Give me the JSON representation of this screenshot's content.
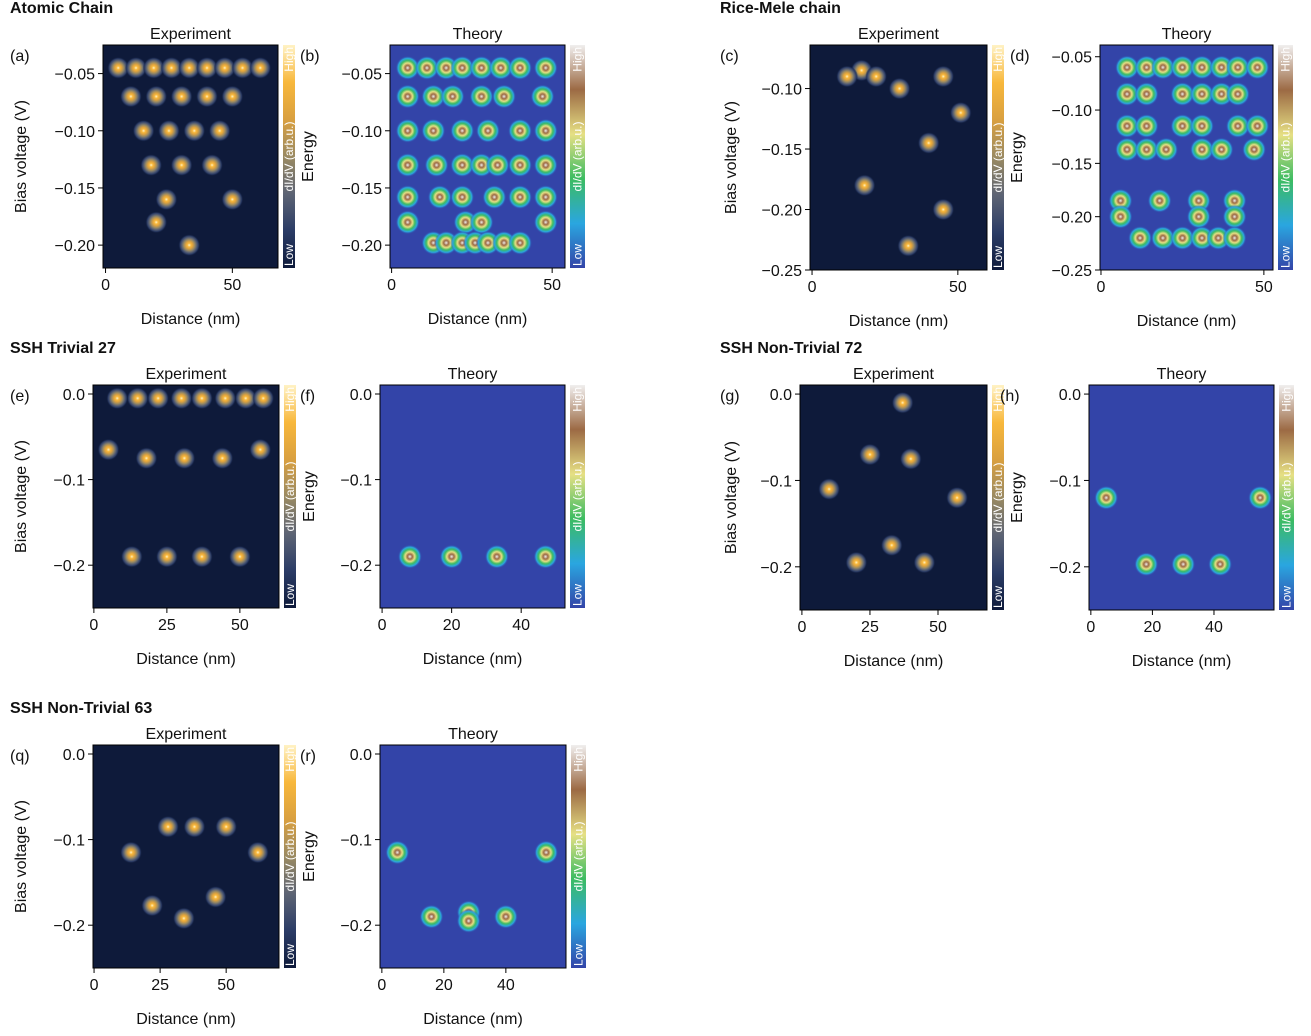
{
  "chart_data": [
    {
      "type": "heatmap",
      "title": "Atomic Chain",
      "panel": "(a)",
      "subtitle": "Experiment",
      "xlabel": "Distance (nm)",
      "ylabel": "Bias voltage (V)",
      "xlim": [
        -1,
        68
      ],
      "ylim": [
        -0.22,
        -0.025
      ],
      "xticks": [
        0,
        50
      ],
      "yticks": [
        {
          "value": -0.05,
          "label": "−0.05"
        },
        {
          "value": -0.1,
          "label": "−0.10"
        },
        {
          "value": -0.15,
          "label": "−0.15"
        },
        {
          "value": -0.2,
          "label": "−0.20"
        }
      ],
      "colorbar": {
        "label": "dI/dV (arb.u.)",
        "high": "High",
        "low": "Low",
        "colors": [
          "#0e1a3a",
          "#2b3c66",
          "#5d6474",
          "#9a8a62",
          "#d9a040",
          "#f8b83c",
          "#fff2c4"
        ]
      },
      "side_label": "Energy",
      "peaks": {
        "x": [
          5,
          12,
          19,
          26,
          33,
          40,
          47,
          54,
          61,
          10,
          20,
          30,
          40,
          50,
          15,
          25,
          35,
          45,
          18,
          30,
          42,
          24,
          50,
          20,
          33
        ],
        "y": [
          -0.045,
          -0.045,
          -0.045,
          -0.045,
          -0.045,
          -0.045,
          -0.045,
          -0.045,
          -0.045,
          -0.07,
          -0.07,
          -0.07,
          -0.07,
          -0.07,
          -0.1,
          -0.1,
          -0.1,
          -0.1,
          -0.13,
          -0.13,
          -0.13,
          -0.16,
          -0.16,
          -0.18,
          -0.2
        ]
      }
    },
    {
      "type": "heatmap",
      "panel": "(b)",
      "subtitle": "Theory",
      "xlabel": "Distance (nm)",
      "xlim": [
        -0.5,
        54
      ],
      "ylim": [
        -0.22,
        -0.025
      ],
      "xticks": [
        0,
        50
      ],
      "yticks": [
        {
          "value": -0.05,
          "label": "−0.05"
        },
        {
          "value": -0.1,
          "label": "−0.10"
        },
        {
          "value": -0.15,
          "label": "−0.15"
        },
        {
          "value": -0.2,
          "label": "−0.20"
        }
      ],
      "colorbar": {
        "label": "dI/dV (arb.u.)",
        "high": "High",
        "low": "Low",
        "colors": [
          "#3344a8",
          "#2aa6e0",
          "#3cbc62",
          "#e6e084",
          "#9c6a44",
          "#f0eeee"
        ]
      },
      "peaks": {
        "x": [
          5,
          11,
          17,
          22,
          28,
          34,
          40,
          48,
          5,
          13,
          19,
          28,
          35,
          47,
          5,
          13,
          22,
          30,
          40,
          48,
          5,
          14,
          22,
          28,
          33,
          40,
          48,
          5,
          15,
          22,
          32,
          40,
          48,
          5,
          23,
          28,
          48,
          13,
          17,
          22,
          26,
          30,
          35,
          40
        ],
        "y": [
          -0.045,
          -0.045,
          -0.045,
          -0.045,
          -0.045,
          -0.045,
          -0.045,
          -0.045,
          -0.07,
          -0.07,
          -0.07,
          -0.07,
          -0.07,
          -0.07,
          -0.1,
          -0.1,
          -0.1,
          -0.1,
          -0.1,
          -0.1,
          -0.13,
          -0.13,
          -0.13,
          -0.13,
          -0.13,
          -0.13,
          -0.13,
          -0.158,
          -0.158,
          -0.158,
          -0.158,
          -0.158,
          -0.158,
          -0.18,
          -0.18,
          -0.18,
          -0.18,
          -0.198,
          -0.198,
          -0.198,
          -0.198,
          -0.198,
          -0.198,
          -0.198
        ]
      }
    },
    {
      "type": "heatmap",
      "title": "Rice-Mele chain",
      "panel": "(c)",
      "subtitle": "Experiment",
      "xlabel": "Distance (nm)",
      "ylabel": "Bias voltage (V)",
      "xlim": [
        -0.7,
        60
      ],
      "ylim": [
        -0.25,
        -0.064
      ],
      "xticks": [
        0,
        50
      ],
      "yticks": [
        {
          "value": -0.1,
          "label": "−0.10"
        },
        {
          "value": -0.15,
          "label": "−0.15"
        },
        {
          "value": -0.2,
          "label": "−0.20"
        },
        {
          "value": -0.25,
          "label": "−0.25"
        }
      ],
      "colorbar": {
        "label": "dI/dV (arb.u.)",
        "high": "High",
        "low": "Low",
        "colors": [
          "#0e1a3a",
          "#2b3c66",
          "#5d6474",
          "#9a8a62",
          "#d9a040",
          "#f8b83c",
          "#fff2c4"
        ]
      },
      "side_label": "Energy",
      "peaks": {
        "x": [
          17,
          12,
          22,
          51,
          40,
          18,
          45,
          33,
          30,
          45
        ],
        "y": [
          -0.085,
          -0.09,
          -0.09,
          -0.12,
          -0.145,
          -0.18,
          -0.2,
          -0.23,
          -0.1,
          -0.09
        ]
      }
    },
    {
      "type": "heatmap",
      "panel": "(d)",
      "subtitle": "Theory",
      "xlabel": "Distance (nm)",
      "xlim": [
        -0.3,
        52.8
      ],
      "ylim": [
        -0.25,
        -0.039
      ],
      "xticks": [
        0,
        50
      ],
      "yticks": [
        {
          "value": -0.05,
          "label": "−0.05"
        },
        {
          "value": -0.1,
          "label": "−0.10"
        },
        {
          "value": -0.15,
          "label": "−0.15"
        },
        {
          "value": -0.2,
          "label": "−0.20"
        },
        {
          "value": -0.25,
          "label": "−0.25"
        }
      ],
      "colorbar": {
        "label": "dI/dV (arb.u.)",
        "high": "High",
        "low": "Low",
        "colors": [
          "#3344a8",
          "#2aa6e0",
          "#3cbc62",
          "#e6e084",
          "#9c6a44",
          "#f0eeee"
        ]
      },
      "peaks": {
        "x": [
          8,
          14,
          19,
          25,
          31,
          37,
          42,
          48,
          8,
          14,
          25,
          31,
          37,
          42,
          8,
          14,
          25,
          31,
          42,
          48,
          8,
          14,
          20,
          31,
          37,
          47,
          6,
          18,
          30,
          41,
          6,
          30,
          41,
          12,
          19,
          25,
          31,
          36,
          41
        ],
        "y": [
          -0.06,
          -0.06,
          -0.06,
          -0.06,
          -0.06,
          -0.06,
          -0.06,
          -0.06,
          -0.085,
          -0.085,
          -0.085,
          -0.085,
          -0.085,
          -0.085,
          -0.115,
          -0.115,
          -0.115,
          -0.115,
          -0.115,
          -0.115,
          -0.137,
          -0.137,
          -0.137,
          -0.137,
          -0.137,
          -0.137,
          -0.185,
          -0.185,
          -0.185,
          -0.185,
          -0.2,
          -0.2,
          -0.2,
          -0.22,
          -0.22,
          -0.22,
          -0.22,
          -0.22,
          -0.22
        ]
      }
    },
    {
      "type": "heatmap",
      "title": "SSH Trivial 27",
      "panel": "(e)",
      "subtitle": "Experiment",
      "xlabel": "Distance (nm)",
      "ylabel": "Bias voltage (V)",
      "xlim": [
        -0.3,
        63.4
      ],
      "ylim": [
        -0.25,
        0.0105
      ],
      "xticks": [
        0,
        25,
        50
      ],
      "yticks": [
        {
          "value": 0,
          "label": "0.0"
        },
        {
          "value": -0.1,
          "label": "−0.1"
        },
        {
          "value": -0.2,
          "label": "−0.2"
        }
      ],
      "colorbar": {
        "label": "dI/dV (arb.u.)",
        "high": "High",
        "low": "Low",
        "colors": [
          "#0e1a3a",
          "#2b3c66",
          "#5d6474",
          "#9a8a62",
          "#d9a040",
          "#f8b83c",
          "#fff2c4"
        ]
      },
      "side_label": "Energy",
      "peaks": {
        "x": [
          8,
          15,
          22,
          30,
          37,
          45,
          52,
          58,
          5,
          18,
          31,
          44,
          57,
          13,
          25,
          37,
          50
        ],
        "y": [
          -0.005,
          -0.005,
          -0.005,
          -0.005,
          -0.005,
          -0.005,
          -0.005,
          -0.005,
          -0.065,
          -0.075,
          -0.075,
          -0.075,
          -0.065,
          -0.19,
          -0.19,
          -0.19,
          -0.19
        ]
      }
    },
    {
      "type": "heatmap",
      "panel": "(f)",
      "subtitle": "Theory",
      "xlabel": "Distance (nm)",
      "xlim": [
        -0.6,
        52.6
      ],
      "ylim": [
        -0.25,
        0.0105
      ],
      "xticks": [
        0,
        20,
        40
      ],
      "yticks": [
        {
          "value": 0,
          "label": "0.0"
        },
        {
          "value": -0.1,
          "label": "−0.1"
        },
        {
          "value": -0.2,
          "label": "−0.2"
        }
      ],
      "colorbar": {
        "label": "dI/dV (arb.u.)",
        "high": "High",
        "low": "Low",
        "colors": [
          "#3344a8",
          "#2aa6e0",
          "#3cbc62",
          "#e6e084",
          "#9c6a44",
          "#f0eeee"
        ]
      },
      "peaks": {
        "x": [
          8,
          20,
          33,
          47
        ],
        "y": [
          -0.19,
          -0.19,
          -0.19,
          -0.19
        ]
      }
    },
    {
      "type": "heatmap",
      "title": "SSH Non-Trivial 72",
      "panel": "(g)",
      "subtitle": "Experiment",
      "xlabel": "Distance (nm)",
      "ylabel": "Bias voltage (V)",
      "xlim": [
        -0.7,
        68
      ],
      "ylim": [
        -0.25,
        0.0105
      ],
      "xticks": [
        0,
        25,
        50
      ],
      "yticks": [
        {
          "value": 0,
          "label": "0.0"
        },
        {
          "value": -0.1,
          "label": "−0.1"
        },
        {
          "value": -0.2,
          "label": "−0.2"
        }
      ],
      "colorbar": {
        "label": "dI/dV (arb.u.)",
        "high": "High",
        "low": "Low",
        "colors": [
          "#0e1a3a",
          "#2b3c66",
          "#5d6474",
          "#9a8a62",
          "#d9a040",
          "#f8b83c",
          "#fff2c4"
        ]
      },
      "side_label": "Energy",
      "peaks": {
        "x": [
          10,
          57,
          33,
          20,
          45,
          37,
          25,
          40
        ],
        "y": [
          -0.11,
          -0.12,
          -0.175,
          -0.195,
          -0.195,
          -0.01,
          -0.07,
          -0.075
        ]
      }
    },
    {
      "type": "heatmap",
      "panel": "(h)",
      "subtitle": "Theory",
      "xlabel": "Distance (nm)",
      "xlim": [
        -0.6,
        59.5
      ],
      "ylim": [
        -0.25,
        0.0105
      ],
      "xticks": [
        0,
        20,
        40
      ],
      "yticks": [
        {
          "value": 0,
          "label": "0.0"
        },
        {
          "value": -0.1,
          "label": "−0.1"
        },
        {
          "value": -0.2,
          "label": "−0.2"
        }
      ],
      "colorbar": {
        "label": "dI/dV (arb.u.)",
        "high": "High",
        "low": "Low",
        "colors": [
          "#3344a8",
          "#2aa6e0",
          "#3cbc62",
          "#e6e084",
          "#9c6a44",
          "#f0eeee"
        ]
      },
      "peaks": {
        "x": [
          5,
          55,
          18,
          30,
          42
        ],
        "y": [
          -0.12,
          -0.12,
          -0.197,
          -0.197,
          -0.197
        ]
      }
    },
    {
      "type": "heatmap",
      "title": "SSH Non-Trivial 63",
      "panel": "(q)",
      "subtitle": "Experiment",
      "xlabel": "Distance (nm)",
      "ylabel": "Bias voltage (V)",
      "xlim": [
        -0.4,
        70
      ],
      "ylim": [
        -0.25,
        0.0105
      ],
      "xticks": [
        0,
        25,
        50
      ],
      "yticks": [
        {
          "value": 0,
          "label": "0.0"
        },
        {
          "value": -0.1,
          "label": "−0.1"
        },
        {
          "value": -0.2,
          "label": "−0.2"
        }
      ],
      "colorbar": {
        "label": "dI/dV (arb.u.)",
        "high": "High",
        "low": "Low",
        "colors": [
          "#0e1a3a",
          "#2b3c66",
          "#5d6474",
          "#9a8a62",
          "#d9a040",
          "#f8b83c",
          "#fff2c4"
        ]
      },
      "side_label": "Energy",
      "peaks": {
        "x": [
          14,
          62,
          22,
          34,
          46,
          28,
          38,
          50
        ],
        "y": [
          -0.115,
          -0.115,
          -0.177,
          -0.192,
          -0.167,
          -0.085,
          -0.085,
          -0.085
        ]
      }
    },
    {
      "type": "heatmap",
      "panel": "(r)",
      "subtitle": "Theory",
      "xlabel": "Distance (nm)",
      "xlim": [
        -0.6,
        59.4
      ],
      "ylim": [
        -0.25,
        0.0105
      ],
      "xticks": [
        0,
        20,
        40
      ],
      "yticks": [
        {
          "value": 0,
          "label": "0.0"
        },
        {
          "value": -0.1,
          "label": "−0.1"
        },
        {
          "value": -0.2,
          "label": "−0.2"
        }
      ],
      "colorbar": {
        "label": "dI/dV (arb.u.)",
        "high": "High",
        "low": "Low",
        "colors": [
          "#3344a8",
          "#2aa6e0",
          "#3cbc62",
          "#e6e084",
          "#9c6a44",
          "#f0eeee"
        ]
      },
      "peaks": {
        "x": [
          5,
          53,
          16,
          28,
          28,
          40
        ],
        "y": [
          -0.115,
          -0.115,
          -0.19,
          -0.185,
          -0.195,
          -0.19
        ]
      }
    }
  ]
}
